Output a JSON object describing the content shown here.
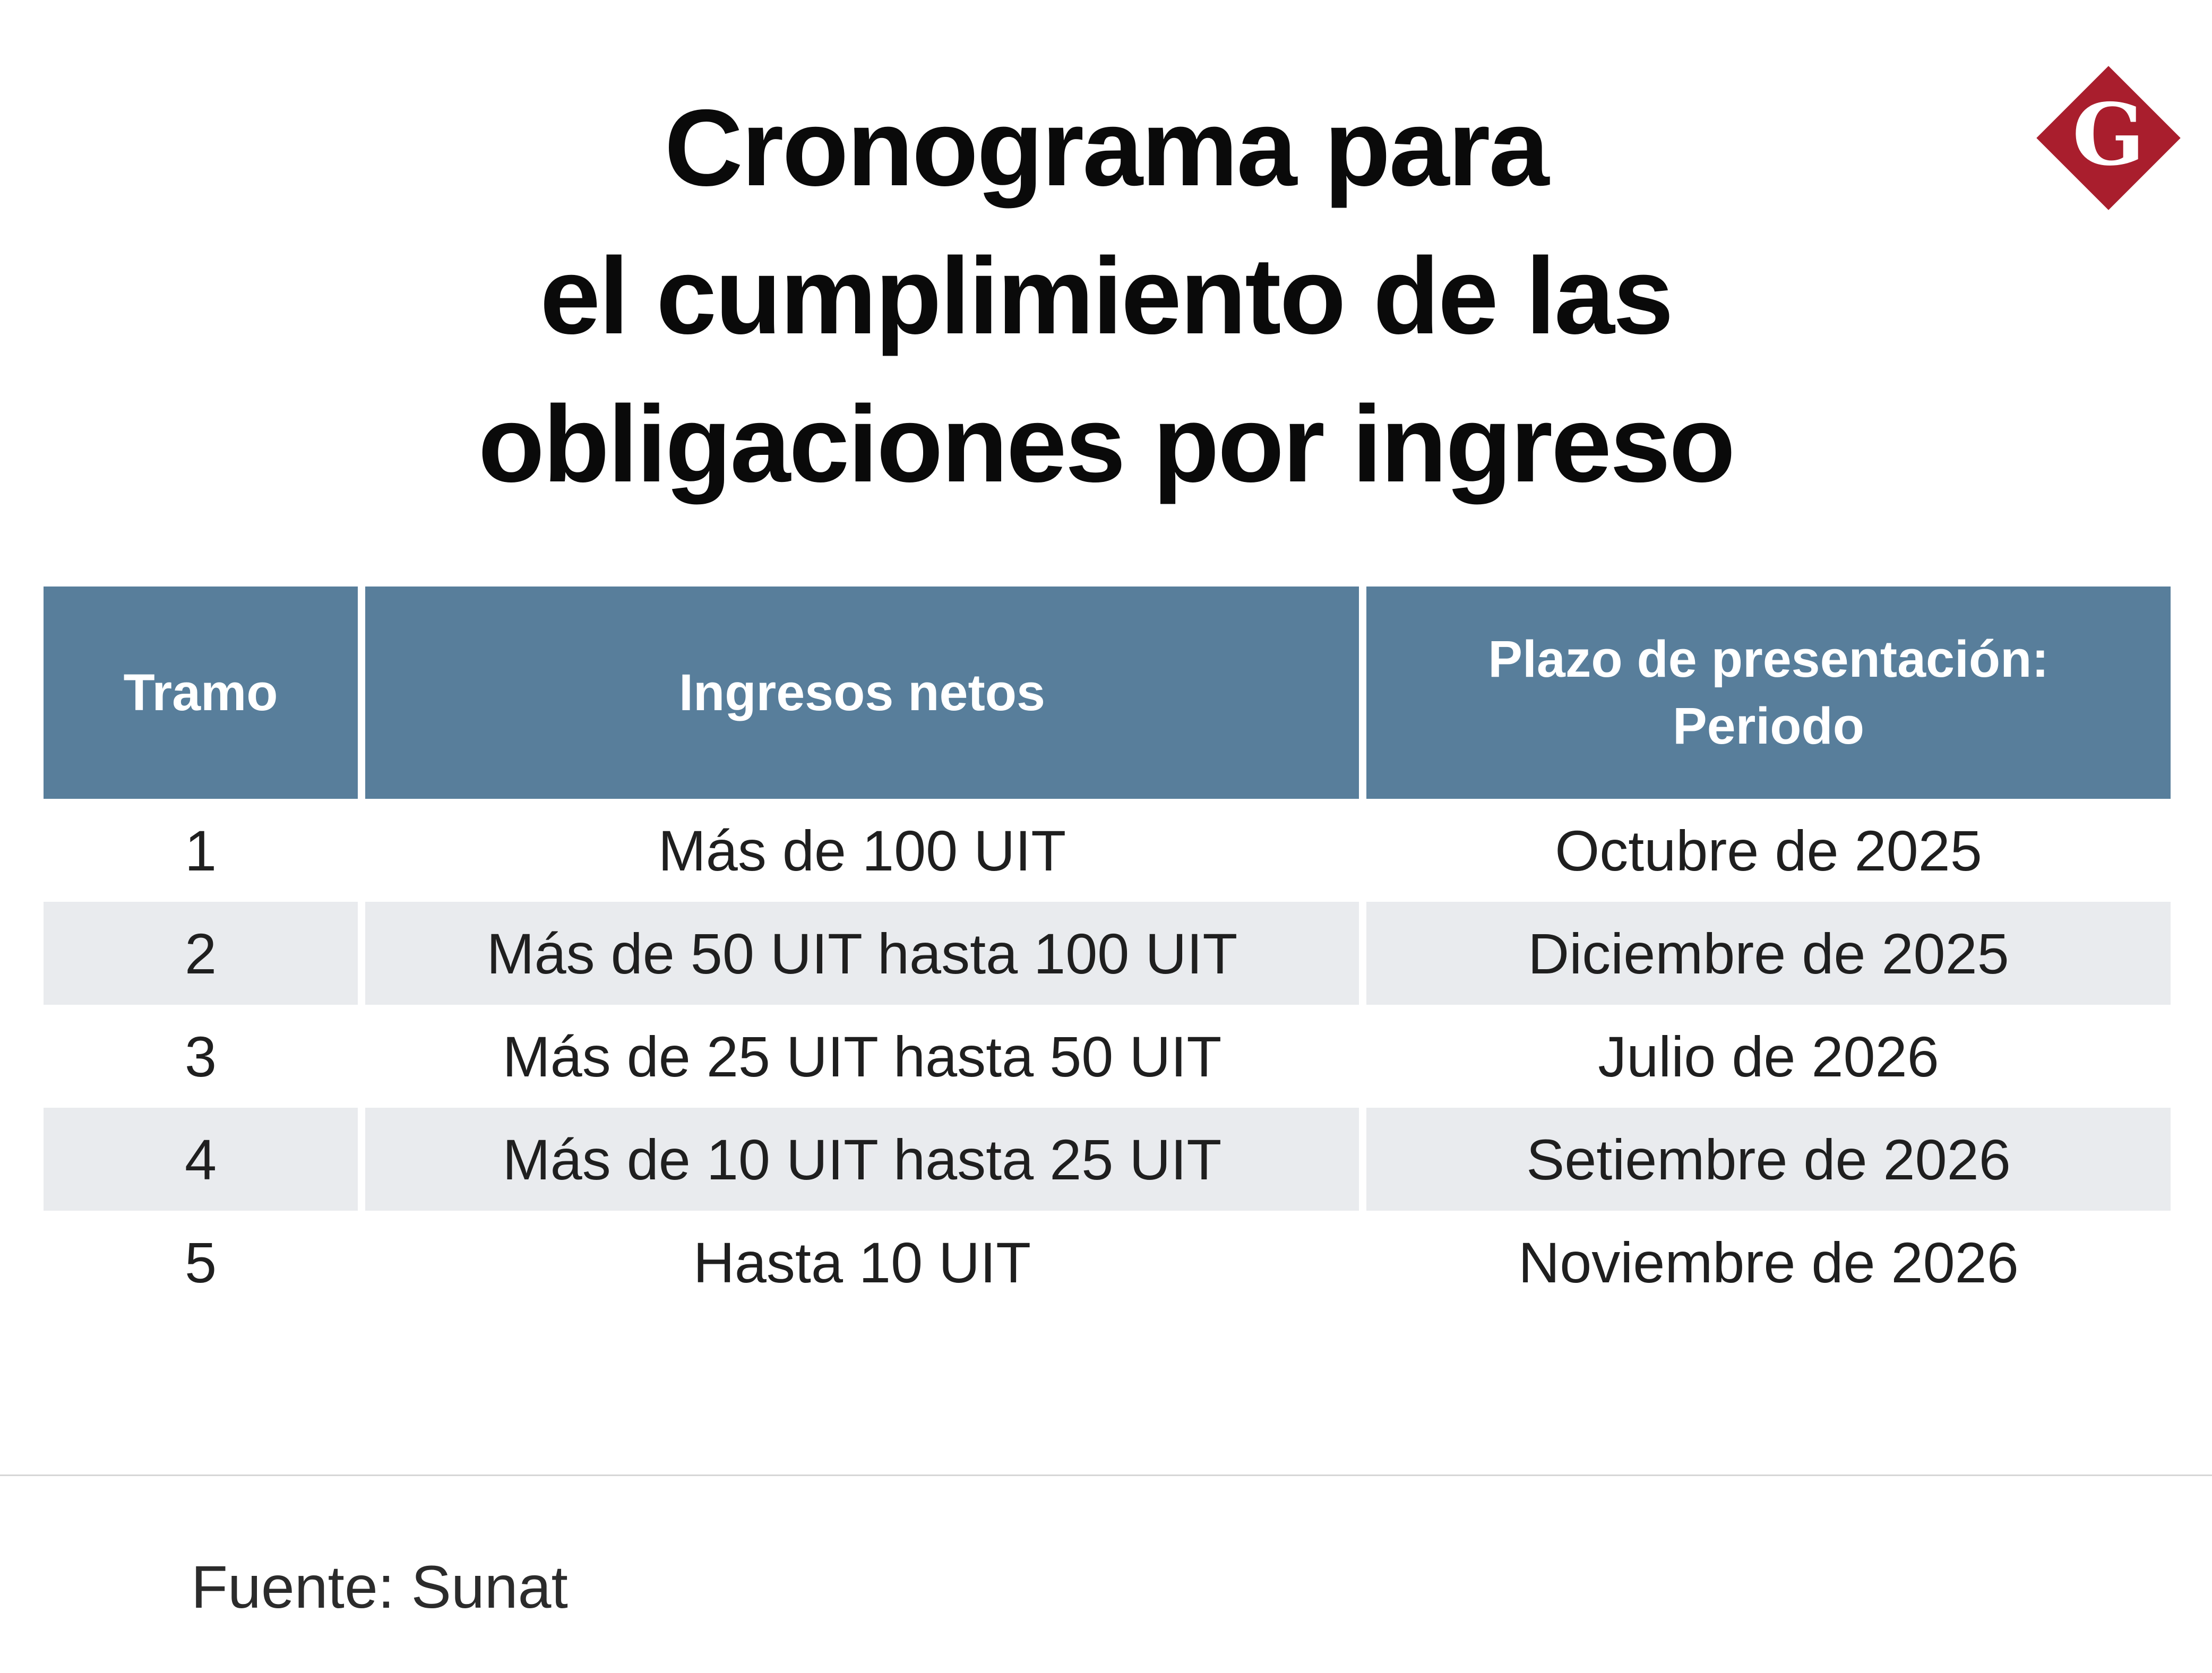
{
  "title": {
    "lines": [
      "Cronograma para",
      "el cumplimiento de las",
      "obligaciones por ingreso"
    ]
  },
  "logo": {
    "letter": "G"
  },
  "table": {
    "plazo_header_lines": [
      "Plazo de presentación:",
      "Periodo"
    ]
  },
  "chart_data": {
    "type": "table",
    "title": "Cronograma para el cumplimiento de las obligaciones por ingreso",
    "columns": [
      "Tramo",
      "Ingresos netos",
      "Plazo de presentación: Periodo"
    ],
    "rows": [
      [
        "1",
        "Más de 100 UIT",
        "Octubre de 2025"
      ],
      [
        "2",
        "Más de 50 UIT hasta 100 UIT",
        "Diciembre de 2025"
      ],
      [
        "3",
        "Más de 25 UIT hasta 50 UIT",
        "Julio de 2026"
      ],
      [
        "4",
        "Más de 10 UIT hasta 25 UIT",
        "Setiembre de 2026"
      ],
      [
        "5",
        "Hasta 10 UIT",
        "Noviembre de 2026"
      ]
    ]
  },
  "footer": {
    "source": "Fuente: Sunat"
  },
  "colors": {
    "header_bg": "#587e9b",
    "stripe": "#e9ebee",
    "logo_red": "#a91e2d",
    "text_dark": "#1f1f1f",
    "divider": "#d6d6d6",
    "header_text": "#ffffff"
  }
}
